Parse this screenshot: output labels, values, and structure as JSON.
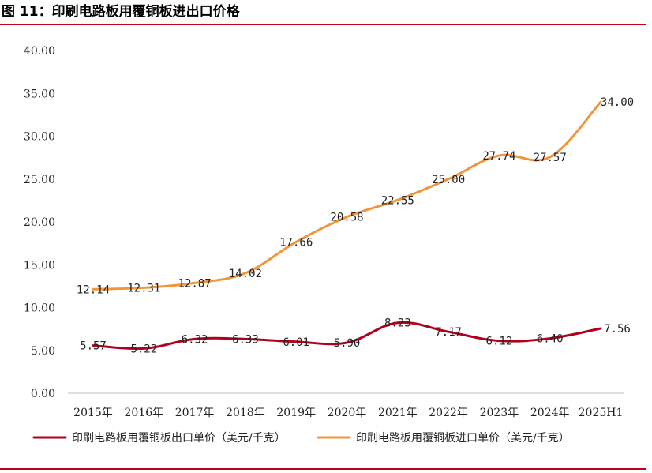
{
  "figure": {
    "title": "图 11：印刷电路板用覆铜板进出口价格"
  },
  "chart_data": {
    "type": "line",
    "title": "图 11：印刷电路板用覆铜板进出口价格",
    "categories": [
      "2015年",
      "2016年",
      "2017年",
      "2018年",
      "2019年",
      "2020年",
      "2021年",
      "2022年",
      "2023年",
      "2024年",
      "2025H1"
    ],
    "ylim": [
      0,
      40
    ],
    "yticks": [
      "0.00",
      "5.00",
      "10.00",
      "15.00",
      "20.00",
      "25.00",
      "30.00",
      "35.00",
      "40.00"
    ],
    "xlabel": "",
    "ylabel": "",
    "grid": false,
    "legend_position": "bottom",
    "series": [
      {
        "name": "印刷电路板用覆铜板出口单价（美元/千克）",
        "color": "#b0001e",
        "values": [
          5.57,
          5.22,
          6.32,
          6.33,
          6.01,
          5.9,
          8.23,
          7.17,
          6.12,
          6.4,
          7.56
        ],
        "labels": [
          "5.57",
          "5.22",
          "6.32",
          "6.33",
          "6.01",
          "5.90",
          "8.23",
          "7.17",
          "6.12",
          "6.40",
          "7.56"
        ]
      },
      {
        "name": "印刷电路板用覆铜板进口单价（美元/千克）",
        "color": "#f0953a",
        "values": [
          12.14,
          12.31,
          12.87,
          14.02,
          17.66,
          20.58,
          22.55,
          25.0,
          27.74,
          27.57,
          34.0
        ],
        "labels": [
          "12.14",
          "12.31",
          "12.87",
          "14.02",
          "17.66",
          "20.58",
          "22.55",
          "25.00",
          "27.74",
          "27.57",
          "34.00"
        ]
      }
    ]
  }
}
